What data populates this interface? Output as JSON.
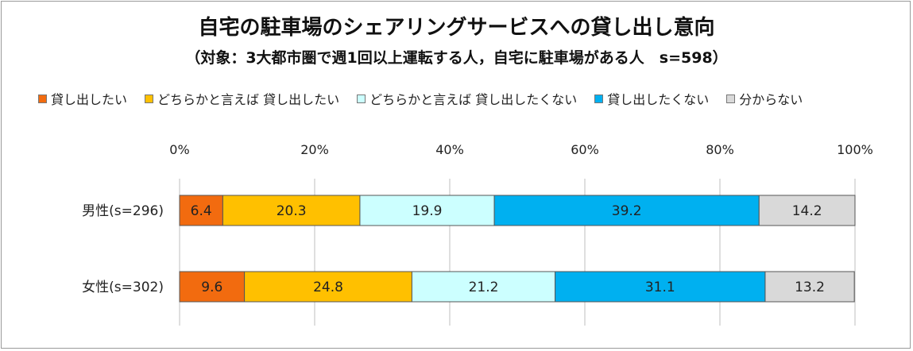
{
  "title": "自宅の駐車場のシェアリングサービスへの貸し出し意向",
  "subtitle": "（対象：3大都市圏で週1回以上運転する人，自宅に駐車場がある人　s=598）",
  "chart_data": {
    "type": "bar",
    "orientation": "horizontal",
    "stacked": "percent",
    "title": "自宅の駐車場のシェアリングサービスへの貸し出し意向",
    "subtitle": "（対象：3大都市圏で週1回以上運転する人，自宅に駐車場がある人　s=598）",
    "categories": [
      "男性(s=296)",
      "女性(s=302)"
    ],
    "series": [
      {
        "name": "貸し出したい",
        "color": "#F26B0F",
        "values": [
          6.4,
          9.6
        ]
      },
      {
        "name": "どちらかと言えば 貸し出したい",
        "color": "#FFC000",
        "values": [
          20.3,
          24.8
        ]
      },
      {
        "name": "どちらかと言えば 貸し出したくない",
        "color": "#CCFFFF",
        "values": [
          19.9,
          21.2
        ]
      },
      {
        "name": "貸し出したくない",
        "color": "#00B0F0",
        "values": [
          39.2,
          31.1
        ]
      },
      {
        "name": "分からない",
        "color": "#D9D9D9",
        "values": [
          14.2,
          13.2
        ]
      }
    ],
    "xlim": [
      0,
      100
    ],
    "x_ticks": [
      "0%",
      "20%",
      "40%",
      "60%",
      "80%",
      "100%"
    ],
    "legend_position": "top",
    "grid": true
  }
}
